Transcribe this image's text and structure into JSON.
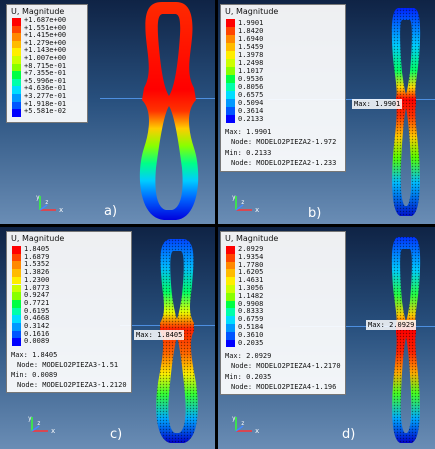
{
  "panels": [
    {
      "label": "a)",
      "legend_title": "U, Magnitude",
      "legend_values": [
        "+1.687e+00",
        "+1.551e+00",
        "+1.415e+00",
        "+1.279e+00",
        "+1.143e+00",
        "+1.007e+00",
        "+8.715e-01",
        "+7.355e-01",
        "+5.996e-01",
        "+4.636e-01",
        "+3.277e-01",
        "+1.918e-01",
        "+5.581e-02"
      ],
      "max_label": "",
      "info_lines": []
    },
    {
      "label": "b)",
      "legend_title": "U, Magnitude",
      "legend_values": [
        "1.9901",
        "1.8420",
        "1.6940",
        "1.5459",
        "1.3978",
        "1.2498",
        "1.1017",
        "0.9536",
        "0.8056",
        "0.6575",
        "0.5094",
        "0.3614",
        "0.2133"
      ],
      "max_label": "Max: 1.9901",
      "info_lines": [
        "Max: 1.9901",
        "Node: MODELO2PIEZA2-1.972",
        "Min: 0.2133",
        "Node: MODELO2PIEZA2-1.233"
      ]
    },
    {
      "label": "c)",
      "legend_title": "U, Magnitude",
      "legend_values": [
        "1.8405",
        "1.6879",
        "1.5352",
        "1.3826",
        "1.2300",
        "1.0773",
        "0.9247",
        "0.7721",
        "0.6195",
        "0.4668",
        "0.3142",
        "0.1616",
        "0.0089"
      ],
      "max_label": "Max: 1.8405",
      "info_lines": [
        "Max: 1.8405",
        "Node: MODELO2PIEZA3-1.51",
        "Min: 0.0089",
        "Node: MODELO2PIEZA3-1.2120"
      ]
    },
    {
      "label": "d)",
      "legend_title": "U, Magnitude",
      "legend_values": [
        "2.0929",
        "1.9354",
        "1.7780",
        "1.6205",
        "1.4631",
        "1.3056",
        "1.1482",
        "0.9908",
        "0.8333",
        "0.6759",
        "0.5184",
        "0.3610",
        "0.2035"
      ],
      "max_label": "Max: 2.0929",
      "info_lines": [
        "Max: 2.0929",
        "Node: MODELO2PIEZA4-1.2170",
        "Min: 0.2035",
        "Node: MODELO2PIEZA4-1.196"
      ]
    }
  ],
  "contour_colors": [
    "#ff0000",
    "#ff4400",
    "#ff8800",
    "#ffbb00",
    "#ffee00",
    "#ccff00",
    "#88ff00",
    "#00ff44",
    "#00ffaa",
    "#00ddff",
    "#0099ff",
    "#0055ff",
    "#0000ff"
  ],
  "axis_labels": {
    "y": "y",
    "z": "z",
    "x": "x"
  }
}
